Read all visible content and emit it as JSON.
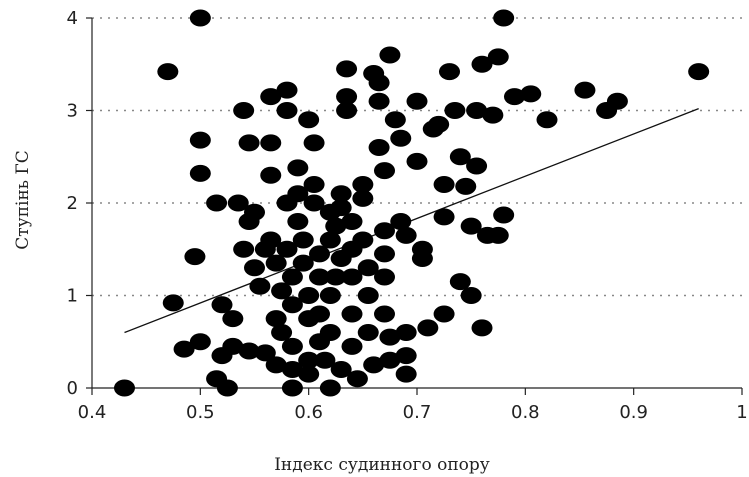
{
  "chart_data": {
    "type": "scatter",
    "xlabel": "Індекс судинного опору",
    "ylabel": "Ступінь ГС",
    "xlim": [
      0.4,
      1
    ],
    "ylim": [
      0,
      4
    ],
    "x_ticks": [
      "0.4",
      "0.5",
      "0.6",
      "0.7",
      "0.8",
      "0.9",
      "1"
    ],
    "y_ticks": [
      "0",
      "1",
      "2",
      "3",
      "4"
    ],
    "grid": "horizontal-dotted",
    "trendline": {
      "x": [
        0.43,
        0.96
      ],
      "y": [
        0.6,
        3.02
      ]
    },
    "series": [
      {
        "points": [
          [
            0.43,
            0.0
          ],
          [
            0.47,
            3.42
          ],
          [
            0.475,
            0.92
          ],
          [
            0.485,
            0.42
          ],
          [
            0.495,
            1.42
          ],
          [
            0.5,
            2.32
          ],
          [
            0.5,
            2.68
          ],
          [
            0.5,
            4.0
          ],
          [
            0.5,
            0.5
          ],
          [
            0.515,
            2.0
          ],
          [
            0.515,
            0.1
          ],
          [
            0.52,
            0.9
          ],
          [
            0.52,
            0.35
          ],
          [
            0.525,
            0.0
          ],
          [
            0.53,
            0.75
          ],
          [
            0.53,
            0.45
          ],
          [
            0.535,
            2.0
          ],
          [
            0.54,
            3.0
          ],
          [
            0.54,
            1.5
          ],
          [
            0.545,
            2.65
          ],
          [
            0.545,
            1.8
          ],
          [
            0.545,
            0.4
          ],
          [
            0.55,
            1.9
          ],
          [
            0.55,
            1.3
          ],
          [
            0.555,
            1.1
          ],
          [
            0.56,
            1.5
          ],
          [
            0.56,
            0.38
          ],
          [
            0.565,
            2.65
          ],
          [
            0.565,
            2.3
          ],
          [
            0.565,
            3.15
          ],
          [
            0.565,
            1.6
          ],
          [
            0.57,
            1.35
          ],
          [
            0.57,
            0.75
          ],
          [
            0.57,
            0.25
          ],
          [
            0.575,
            1.05
          ],
          [
            0.575,
            0.6
          ],
          [
            0.58,
            3.22
          ],
          [
            0.58,
            3.0
          ],
          [
            0.58,
            2.0
          ],
          [
            0.58,
            1.5
          ],
          [
            0.585,
            1.2
          ],
          [
            0.585,
            0.9
          ],
          [
            0.585,
            0.45
          ],
          [
            0.585,
            0.2
          ],
          [
            0.585,
            0.0
          ],
          [
            0.59,
            2.38
          ],
          [
            0.59,
            2.1
          ],
          [
            0.59,
            1.8
          ],
          [
            0.595,
            1.6
          ],
          [
            0.595,
            1.35
          ],
          [
            0.6,
            1.0
          ],
          [
            0.6,
            0.75
          ],
          [
            0.6,
            0.3
          ],
          [
            0.6,
            0.15
          ],
          [
            0.6,
            2.9
          ],
          [
            0.605,
            2.65
          ],
          [
            0.605,
            2.2
          ],
          [
            0.605,
            2.0
          ],
          [
            0.61,
            1.45
          ],
          [
            0.61,
            1.2
          ],
          [
            0.61,
            0.8
          ],
          [
            0.61,
            0.5
          ],
          [
            0.615,
            0.3
          ],
          [
            0.62,
            1.9
          ],
          [
            0.62,
            1.6
          ],
          [
            0.62,
            1.0
          ],
          [
            0.62,
            0.6
          ],
          [
            0.62,
            0.0
          ],
          [
            0.625,
            1.75
          ],
          [
            0.625,
            1.2
          ],
          [
            0.63,
            2.1
          ],
          [
            0.63,
            1.95
          ],
          [
            0.63,
            1.4
          ],
          [
            0.63,
            0.2
          ],
          [
            0.635,
            3.45
          ],
          [
            0.635,
            3.15
          ],
          [
            0.635,
            3.0
          ],
          [
            0.64,
            1.8
          ],
          [
            0.64,
            1.5
          ],
          [
            0.64,
            1.2
          ],
          [
            0.64,
            0.8
          ],
          [
            0.64,
            0.45
          ],
          [
            0.645,
            0.1
          ],
          [
            0.65,
            2.2
          ],
          [
            0.65,
            2.05
          ],
          [
            0.65,
            1.6
          ],
          [
            0.655,
            1.3
          ],
          [
            0.655,
            1.0
          ],
          [
            0.655,
            0.6
          ],
          [
            0.66,
            0.25
          ],
          [
            0.66,
            3.4
          ],
          [
            0.665,
            3.3
          ],
          [
            0.665,
            3.1
          ],
          [
            0.665,
            2.6
          ],
          [
            0.67,
            2.35
          ],
          [
            0.67,
            1.7
          ],
          [
            0.67,
            1.45
          ],
          [
            0.67,
            1.2
          ],
          [
            0.67,
            0.8
          ],
          [
            0.675,
            0.55
          ],
          [
            0.675,
            0.3
          ],
          [
            0.675,
            3.6
          ],
          [
            0.68,
            2.9
          ],
          [
            0.685,
            2.7
          ],
          [
            0.685,
            1.8
          ],
          [
            0.69,
            1.65
          ],
          [
            0.69,
            0.6
          ],
          [
            0.69,
            0.35
          ],
          [
            0.69,
            0.15
          ],
          [
            0.7,
            3.1
          ],
          [
            0.7,
            2.45
          ],
          [
            0.705,
            1.5
          ],
          [
            0.705,
            1.4
          ],
          [
            0.71,
            0.65
          ],
          [
            0.715,
            2.8
          ],
          [
            0.72,
            2.85
          ],
          [
            0.725,
            2.2
          ],
          [
            0.725,
            1.85
          ],
          [
            0.725,
            0.8
          ],
          [
            0.73,
            3.42
          ],
          [
            0.735,
            3.0
          ],
          [
            0.74,
            2.5
          ],
          [
            0.74,
            1.15
          ],
          [
            0.745,
            2.18
          ],
          [
            0.75,
            1.75
          ],
          [
            0.75,
            1.0
          ],
          [
            0.755,
            2.4
          ],
          [
            0.755,
            3.0
          ],
          [
            0.76,
            3.5
          ],
          [
            0.765,
            1.65
          ],
          [
            0.76,
            0.65
          ],
          [
            0.77,
            2.95
          ],
          [
            0.775,
            3.58
          ],
          [
            0.775,
            1.65
          ],
          [
            0.78,
            4.0
          ],
          [
            0.78,
            1.87
          ],
          [
            0.79,
            3.15
          ],
          [
            0.805,
            3.18
          ],
          [
            0.82,
            2.9
          ],
          [
            0.855,
            3.22
          ],
          [
            0.875,
            3.0
          ],
          [
            0.885,
            3.1
          ],
          [
            0.96,
            3.42
          ]
        ]
      }
    ]
  }
}
